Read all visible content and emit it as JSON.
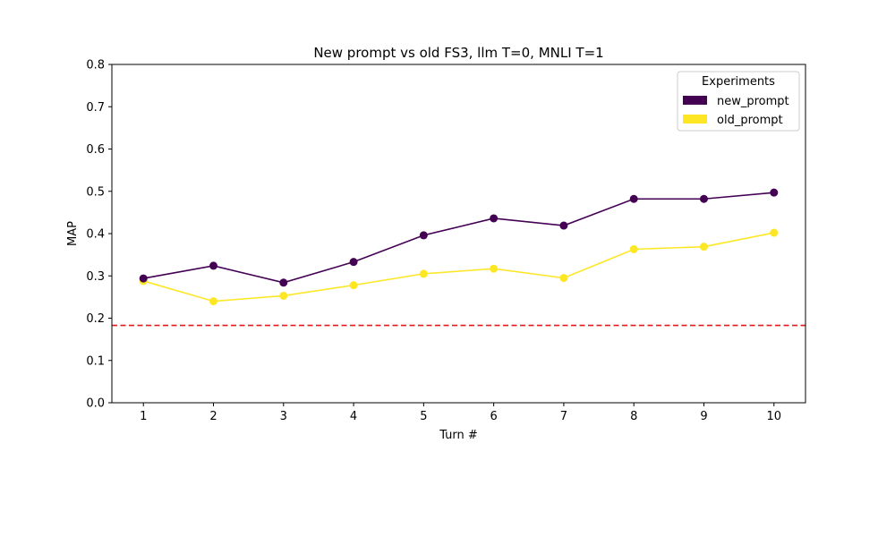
{
  "chart_data": {
    "type": "line",
    "title": "New prompt vs old FS3, llm T=0, MNLI T=1",
    "xlabel": "Turn #",
    "ylabel": "MAP",
    "x": [
      1,
      2,
      3,
      4,
      5,
      6,
      7,
      8,
      9,
      10
    ],
    "xticks": [
      "1",
      "2",
      "3",
      "4",
      "5",
      "6",
      "7",
      "8",
      "9",
      "10"
    ],
    "xlim": [
      0.55,
      10.45
    ],
    "ylim": [
      0.0,
      0.8
    ],
    "yticks": [
      "0.0",
      "0.1",
      "0.2",
      "0.3",
      "0.4",
      "0.5",
      "0.6",
      "0.7",
      "0.8"
    ],
    "grid": false,
    "legend": {
      "title": "Experiments",
      "placement": "top-right"
    },
    "series": [
      {
        "name": "new_prompt",
        "color": "#440154",
        "values": [
          0.294,
          0.324,
          0.284,
          0.333,
          0.396,
          0.436,
          0.419,
          0.482,
          0.482,
          0.497
        ]
      },
      {
        "name": "old_prompt",
        "color": "#fde725",
        "values": [
          0.288,
          0.24,
          0.253,
          0.278,
          0.305,
          0.317,
          0.295,
          0.363,
          0.369,
          0.402
        ]
      }
    ],
    "reference_line": {
      "y": 0.183,
      "color": "#e31a1c",
      "style": "dashed"
    }
  }
}
